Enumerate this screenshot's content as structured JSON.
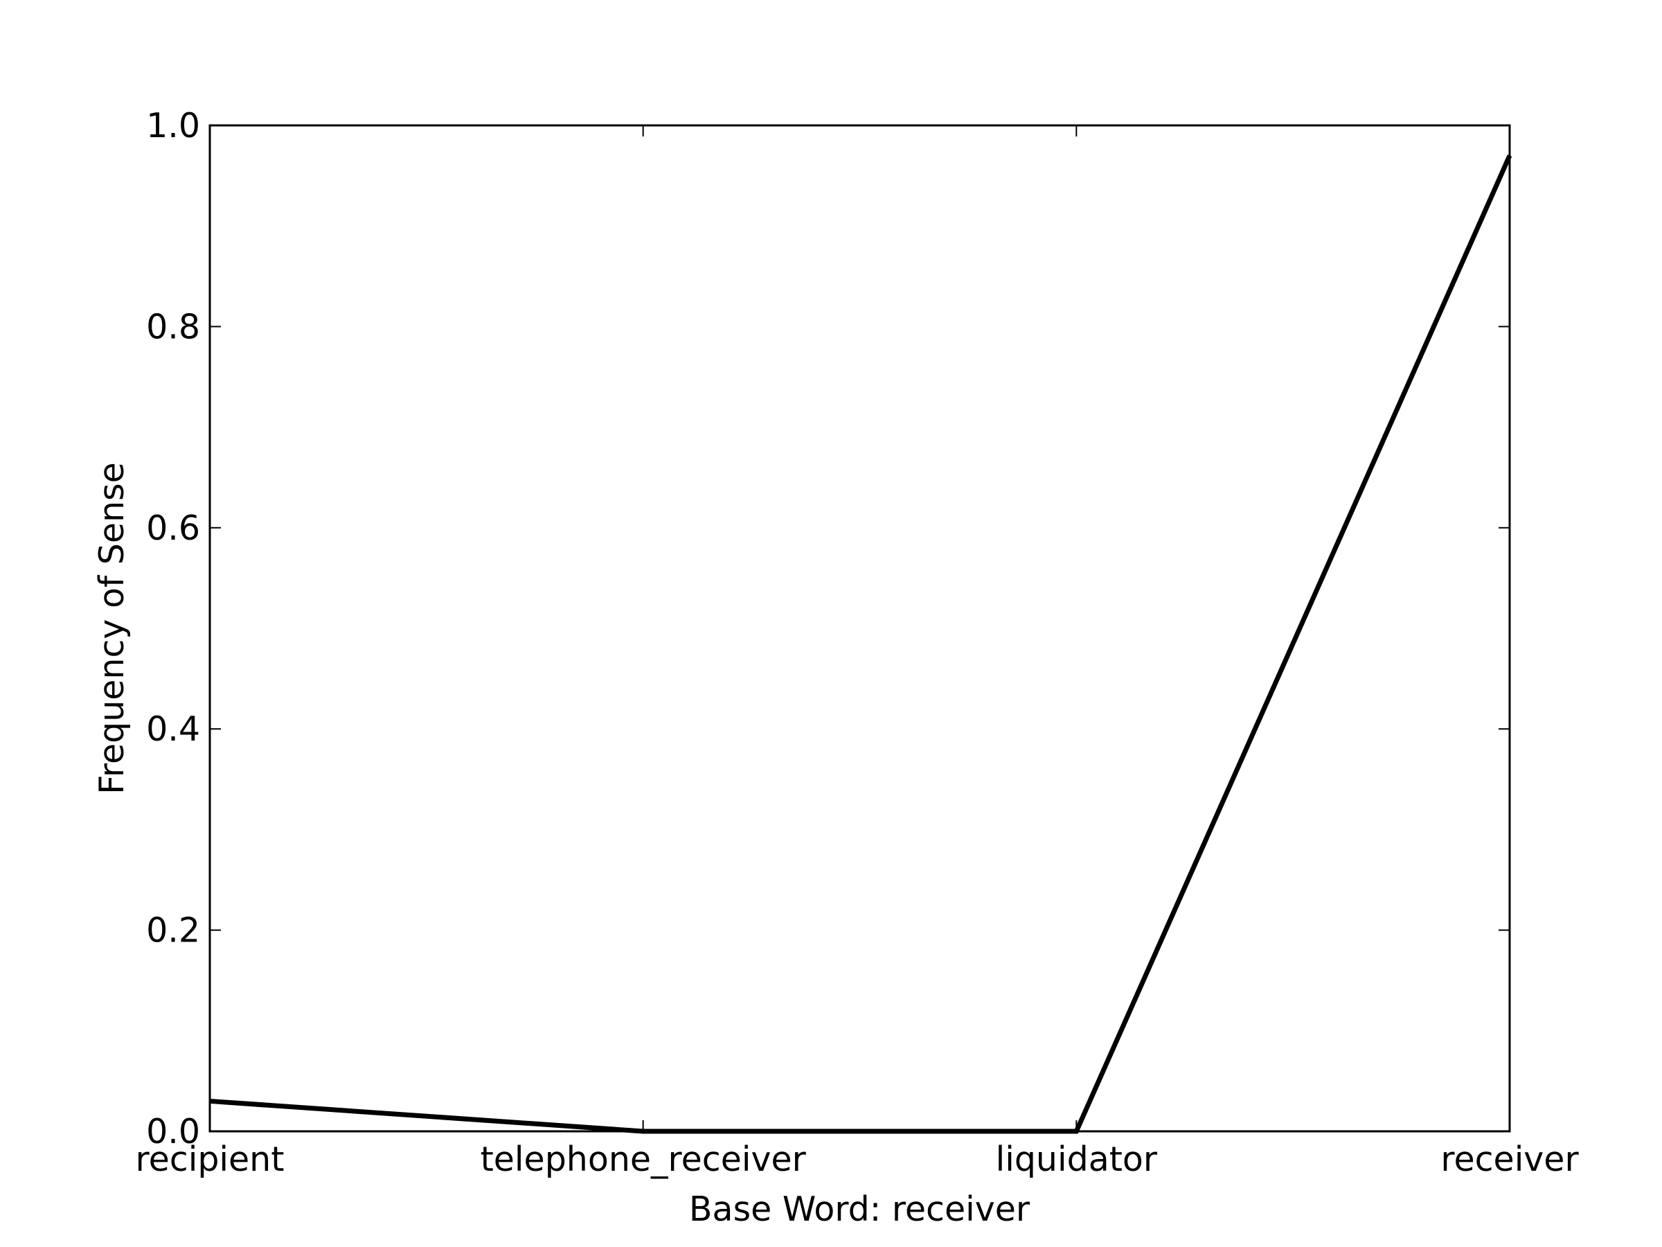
{
  "chart_data": {
    "type": "line",
    "categories": [
      "recipient",
      "telephone_receiver",
      "liquidator",
      "receiver"
    ],
    "series": [
      {
        "values": [
          0.03,
          0.0,
          0.0,
          0.97
        ]
      }
    ],
    "xlabel": "Base Word: receiver",
    "ylabel": "Frequency of Sense",
    "ylim": [
      0,
      1.0
    ],
    "yticks": [
      "0.0",
      "0.2",
      "0.4",
      "0.6",
      "0.8",
      "1.0"
    ],
    "grid": false,
    "line_color": "#000000"
  }
}
